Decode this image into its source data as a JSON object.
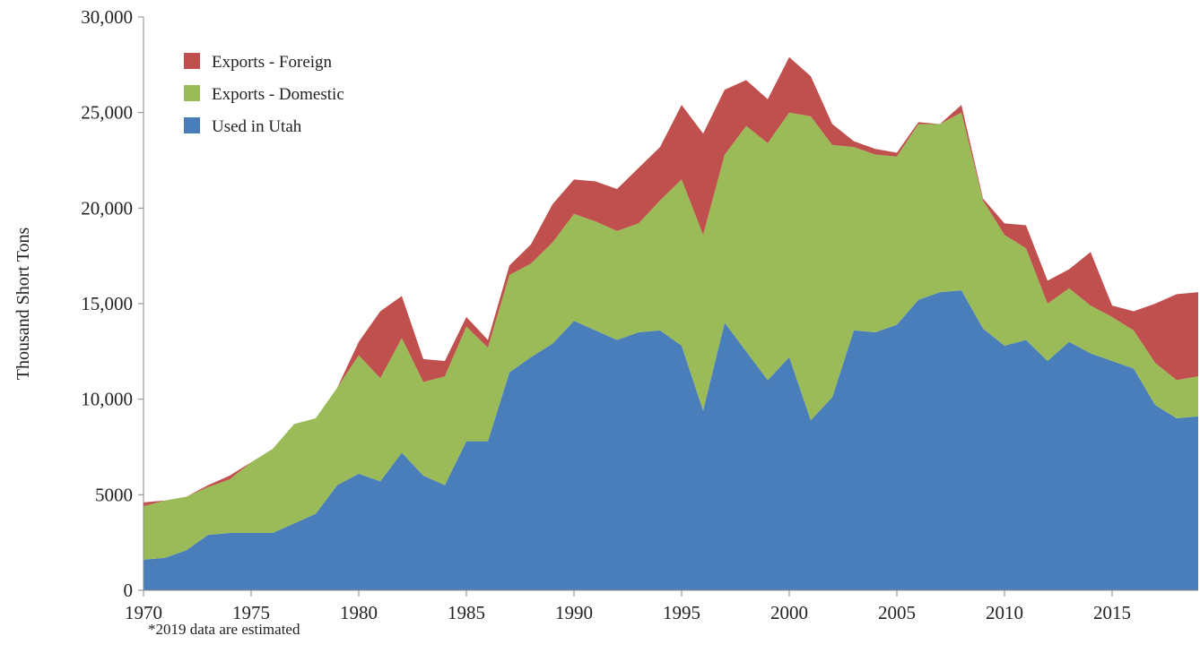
{
  "chart_data": {
    "type": "stacked_area",
    "y_label": "Thousand Short Tons",
    "annotation": "*2019 data are estimated",
    "legend": "top-left",
    "x": [
      1970,
      1971,
      1972,
      1973,
      1974,
      1975,
      1976,
      1977,
      1978,
      1979,
      1980,
      1981,
      1982,
      1983,
      1984,
      1985,
      1986,
      1987,
      1988,
      1989,
      1990,
      1991,
      1992,
      1993,
      1994,
      1995,
      1996,
      1997,
      1998,
      1999,
      2000,
      2001,
      2002,
      2003,
      2004,
      2005,
      2006,
      2007,
      2008,
      2009,
      2010,
      2011,
      2012,
      2013,
      2014,
      2015,
      2016,
      2017,
      2018,
      2019
    ],
    "xlim": [
      1970,
      2019
    ],
    "xticks": [
      1970,
      1975,
      1980,
      1985,
      1990,
      1995,
      2000,
      2005,
      2010,
      2015
    ],
    "ylim": [
      0,
      30000
    ],
    "yticks": [
      0,
      5000,
      {
        "value": 10000,
        "label": "10,000"
      },
      {
        "value": 15000,
        "label": "15,000"
      },
      {
        "value": 20000,
        "label": "20,000"
      },
      {
        "value": 25000,
        "label": "25,000"
      },
      {
        "value": 30000,
        "label": "30,000"
      }
    ],
    "series": [
      {
        "name": "Used in Utah",
        "color": "#4a7ebb",
        "values": [
          1600,
          1700,
          2100,
          2900,
          3000,
          3000,
          3000,
          3500,
          4000,
          5500,
          6100,
          5700,
          7200,
          6000,
          5500,
          7800,
          7800,
          11400,
          12200,
          12900,
          14100,
          13600,
          13100,
          13500,
          13600,
          12800,
          9400,
          14000,
          12500,
          11000,
          12200,
          8900,
          10100,
          13600,
          13500,
          13900,
          15200,
          15600,
          15700,
          13700,
          12800,
          13100,
          12000,
          13000,
          12400,
          12000,
          11600,
          9700,
          9000,
          9100
        ]
      },
      {
        "name": "Exports - Domestic",
        "color": "#9bbb59",
        "values": [
          2800,
          3000,
          2800,
          2500,
          2800,
          3700,
          4400,
          5200,
          5000,
          5100,
          6200,
          5400,
          6000,
          4900,
          5700,
          6000,
          4900,
          5100,
          4900,
          5300,
          5600,
          5700,
          5700,
          5700,
          6800,
          8700,
          9200,
          8800,
          11800,
          12400,
          12800,
          15900,
          13200,
          9600,
          9300,
          8800,
          9200,
          8800,
          9300,
          6700,
          5800,
          4800,
          3000,
          2800,
          2500,
          2300,
          2000,
          2200,
          2000,
          2100
        ]
      },
      {
        "name": "Exports - Foreign",
        "color": "#c0504d",
        "values": [
          200,
          0,
          0,
          100,
          200,
          0,
          0,
          0,
          0,
          0,
          700,
          3500,
          2200,
          1200,
          800,
          500,
          400,
          500,
          1000,
          2000,
          1800,
          2100,
          2200,
          2900,
          2800,
          3900,
          5300,
          3400,
          2400,
          2300,
          2900,
          2100,
          1100,
          300,
          300,
          200,
          100,
          0,
          400,
          100,
          600,
          1200,
          1200,
          1000,
          2800,
          600,
          1000,
          3100,
          4500,
          4400
        ]
      }
    ]
  }
}
